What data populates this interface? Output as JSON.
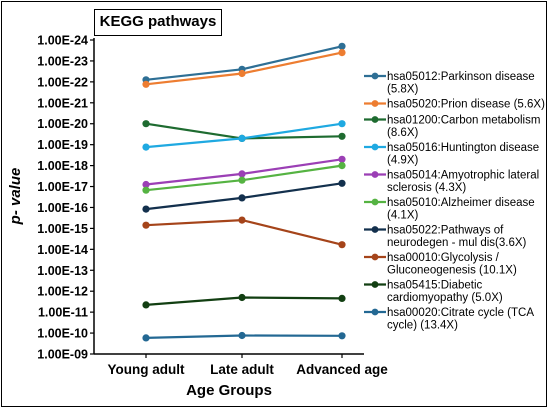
{
  "chart_data": {
    "type": "line",
    "title": "KEGG pathways",
    "xlabel": "Age Groups",
    "ylabel": "p- value",
    "y_scale": "log-reciprocal",
    "categories": [
      "Young adult",
      "Late adult",
      "Advanced age"
    ],
    "y_ticks": [
      "1.00E-24",
      "1.00E-23",
      "1.00E-22",
      "1.00E-21",
      "1.00E-20",
      "1.00E-19",
      "1.00E-18",
      "1.00E-17",
      "1.00E-16",
      "1.00E-15",
      "1.00E-14",
      "1.00E-13",
      "1.00E-12",
      "1.00E-11",
      "1.00E-10",
      "1.00E-09"
    ],
    "grid": false,
    "legend_position": "right",
    "series": [
      {
        "name": "hsa05012:Parkinson disease (5.8X)",
        "color": "#2e6f95",
        "values": [
          8e-23,
          2.5e-23,
          2e-24
        ]
      },
      {
        "name": "hsa05020:Prion disease (5.6X)",
        "color": "#ed7d31",
        "values": [
          1.3e-22,
          4e-23,
          4e-24
        ]
      },
      {
        "name": "hsa01200:Carbon metabolism (8.6X)",
        "color": "#1e6b30",
        "values": [
          1e-20,
          5e-20,
          4e-20
        ]
      },
      {
        "name": "hsa05016:Huntington disease (4.9X)",
        "color": "#1fa9e1",
        "values": [
          1.3e-19,
          5e-20,
          1e-20
        ]
      },
      {
        "name": "hsa05014:Amyotrophic lateral sclerosis (4.3X)",
        "color": "#9b3fb5",
        "values": [
          8e-18,
          2.5e-18,
          5e-19
        ]
      },
      {
        "name": "hsa05010:Alzheimer disease (4.1X)",
        "color": "#55b342",
        "values": [
          1.5e-17,
          5e-18,
          1e-18
        ]
      },
      {
        "name": "hsa05022:Pathways of neurodegen - mul dis(3.6X)",
        "color": "#13304d",
        "values": [
          1.2e-16,
          3.5e-17,
          7e-18
        ]
      },
      {
        "name": "hsa00010:Glycolysis / Gluconeogenesis (10.1X)",
        "color": "#a5441a",
        "values": [
          7e-16,
          4e-16,
          6e-15
        ]
      },
      {
        "name": "hsa05415:Diabetic cardiomyopathy (5.0X)",
        "color": "#123f12",
        "values": [
          4.5e-12,
          2e-12,
          2.2e-12
        ]
      },
      {
        "name": "hsa00020:Citrate cycle (TCA cycle) (13.4X)",
        "color": "#236893",
        "values": [
          1.7e-10,
          1.3e-10,
          1.35e-10
        ]
      }
    ],
    "legend_lines": [
      [
        "hsa05012:Parkinson disease",
        "(5.8X)"
      ],
      [
        "hsa05020:Prion disease (5.6X)"
      ],
      [
        "hsa01200:Carbon metabolism",
        "(8.6X)"
      ],
      [
        "hsa05016:Huntington disease",
        "(4.9X)"
      ],
      [
        "hsa05014:Amyotrophic lateral",
        "sclerosis (4.3X)"
      ],
      [
        "hsa05010:Alzheimer disease",
        "(4.1X)"
      ],
      [
        "hsa05022:Pathways of",
        "neurodegen - mul dis(3.6X)"
      ],
      [
        "hsa00010:Glycolysis /",
        "Gluconeogenesis (10.1X)"
      ],
      [
        "hsa05415:Diabetic",
        "cardiomyopathy (5.0X)"
      ],
      [
        "hsa00020:Citrate cycle (TCA",
        "cycle) (13.4X)"
      ]
    ]
  }
}
